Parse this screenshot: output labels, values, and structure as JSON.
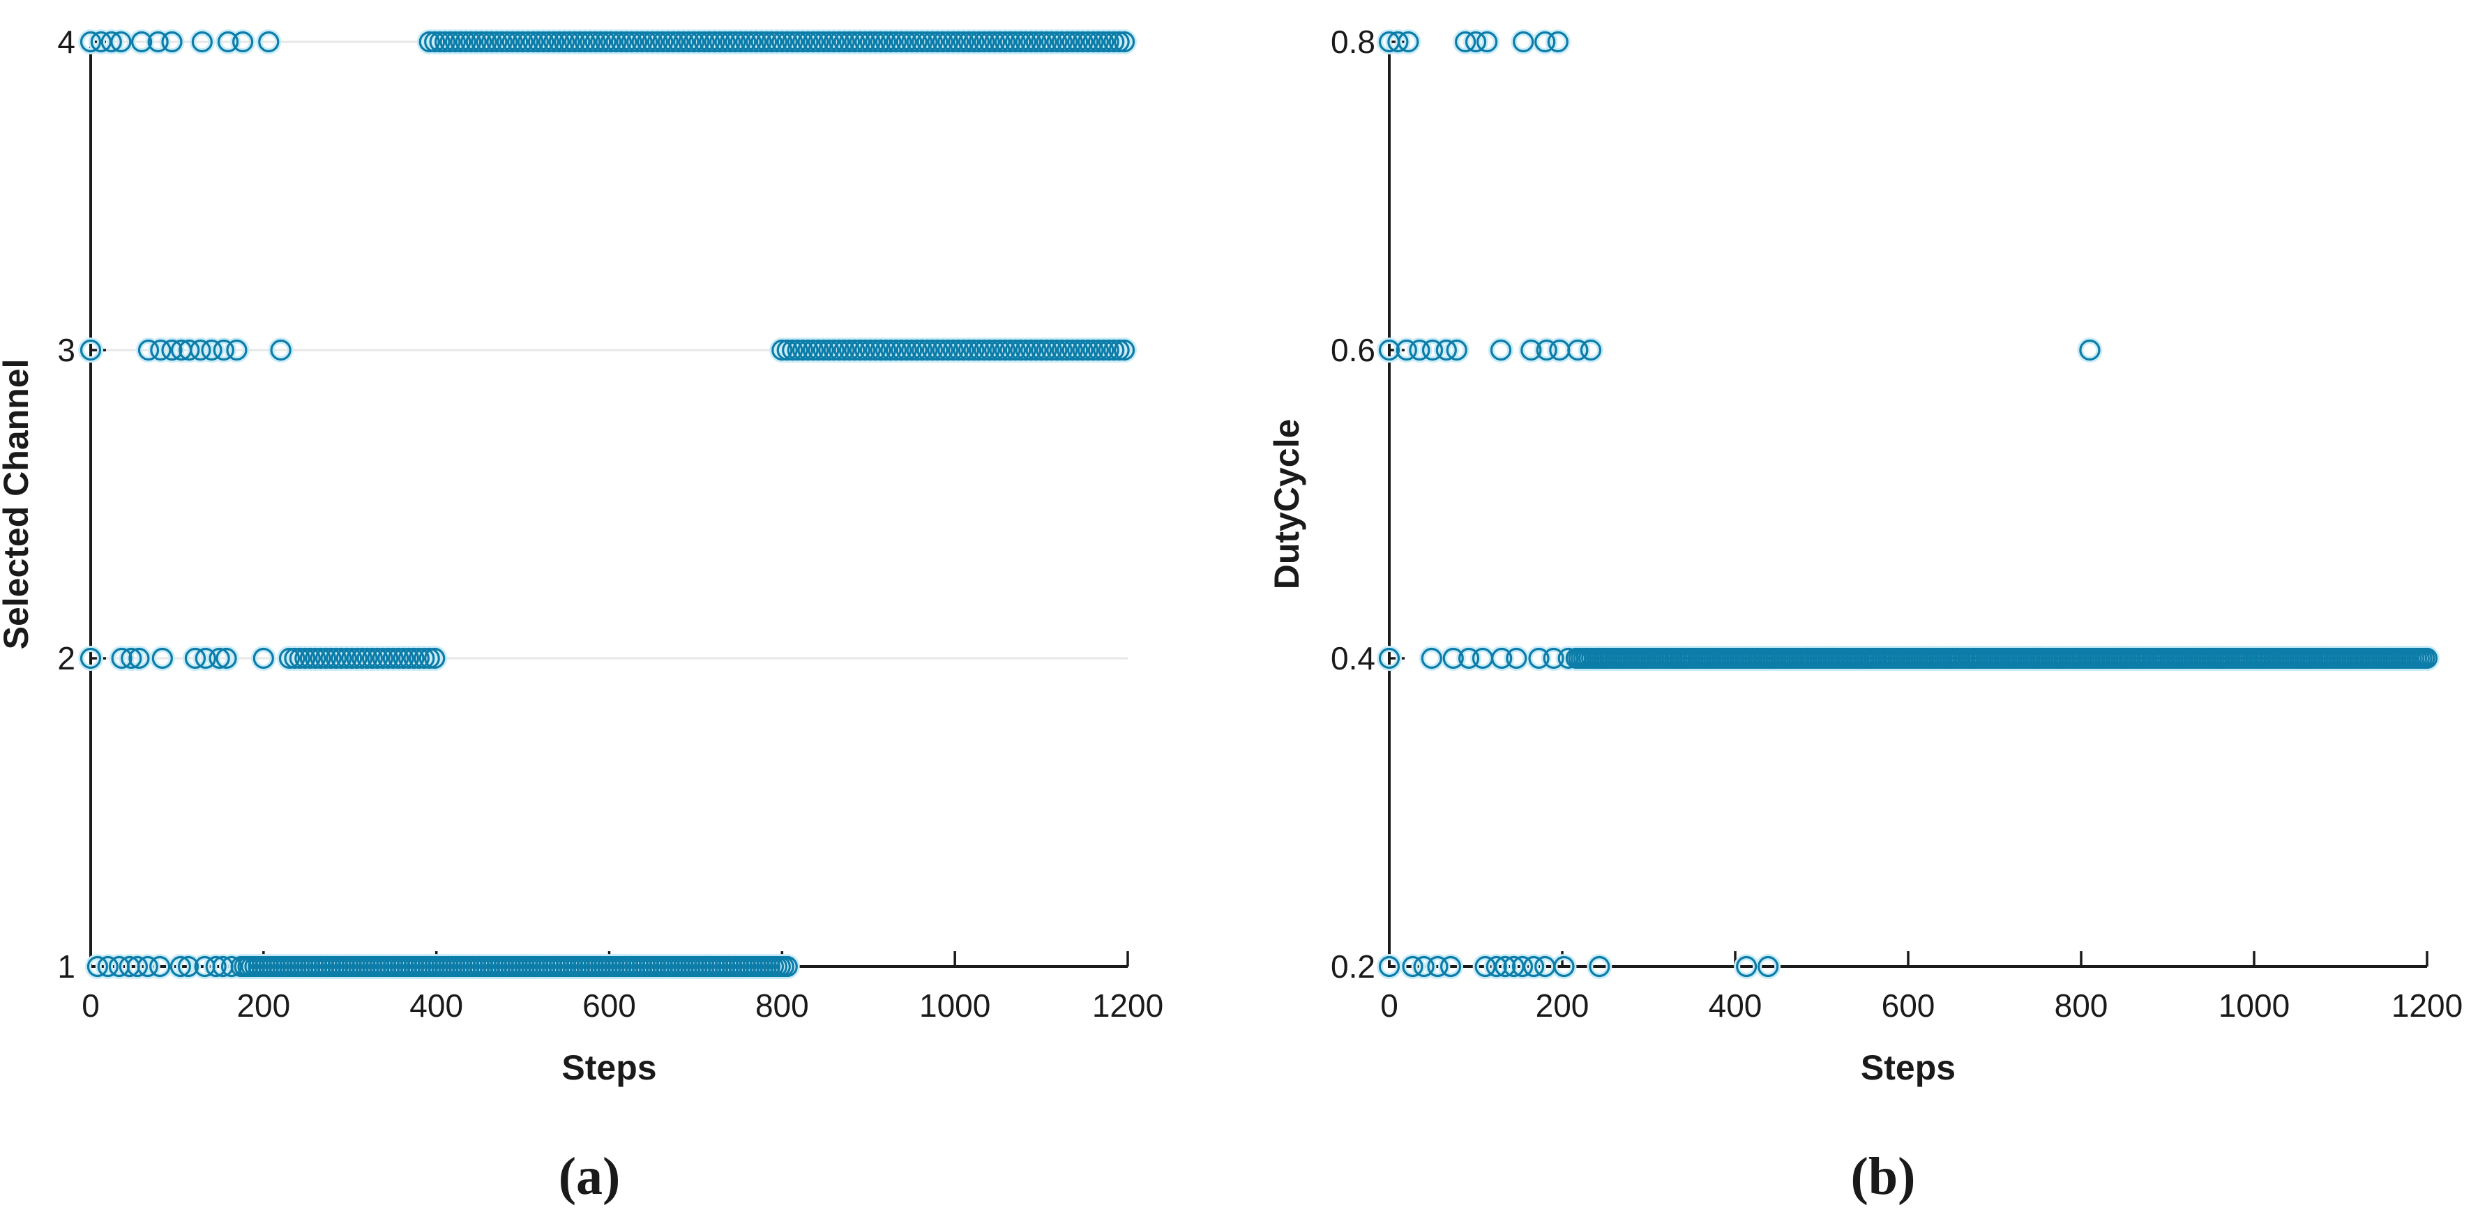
{
  "figure": {
    "background": "#ffffff",
    "axis_color": "#1a1a1a",
    "grid_color": "#e7e7e7",
    "marker_stroke": "#0c7ca8",
    "marker_halo": "#c9ecf8",
    "caption_a": "(a)",
    "caption_b": "(b)"
  },
  "chart_data": [
    {
      "type": "scatter",
      "caption": "(a)",
      "xlabel": "Steps",
      "ylabel": "Selected Channel",
      "xlim": [
        0,
        1200
      ],
      "ylim": [
        1,
        4
      ],
      "xticks": [
        0,
        200,
        400,
        600,
        800,
        1000,
        1200
      ],
      "yticks": [
        1,
        2,
        3,
        4
      ],
      "grid_y": [
        2,
        3,
        4
      ],
      "legend": null,
      "marker": "open-circle",
      "rows": [
        {
          "y": 4,
          "scatter": [
            0,
            12,
            24,
            35,
            59,
            78,
            94,
            129,
            159,
            176,
            206
          ],
          "dense": [
            [
              392,
              1200,
              6
            ]
          ]
        },
        {
          "y": 3,
          "scatter": [
            0,
            67,
            81,
            94,
            105,
            114,
            127,
            140,
            154,
            169,
            220
          ],
          "dense": [
            [
              800,
              1200,
              6
            ]
          ]
        },
        {
          "y": 2,
          "scatter": [
            0,
            36,
            47,
            56,
            83,
            121,
            133,
            149,
            157,
            200
          ],
          "dense": [
            [
              230,
              398,
              6
            ]
          ]
        },
        {
          "y": 1,
          "scatter": [
            8,
            20,
            33,
            45,
            54,
            66,
            80,
            104,
            113,
            132,
            145,
            153,
            163
          ],
          "dense": [
            [
              174,
              806,
              4
            ]
          ]
        }
      ]
    },
    {
      "type": "scatter",
      "caption": "(b)",
      "xlabel": "Steps",
      "ylabel": "DutyCycle",
      "xlim": [
        0,
        1200
      ],
      "ylim": [
        0.2,
        0.8
      ],
      "xticks": [
        0,
        200,
        400,
        600,
        800,
        1000,
        1200
      ],
      "yticks": [
        0.2,
        0.4,
        0.6,
        0.8
      ],
      "grid_y": [],
      "legend": null,
      "marker": "open-circle",
      "rows": [
        {
          "y": 0.8,
          "scatter": [
            0,
            10,
            22,
            88,
            100,
            113,
            155,
            180,
            195
          ],
          "dense": []
        },
        {
          "y": 0.6,
          "scatter": [
            0,
            20,
            35,
            50,
            66,
            78,
            129,
            164,
            182,
            197,
            218,
            233,
            810
          ],
          "dense": []
        },
        {
          "y": 0.4,
          "scatter": [
            0,
            49,
            74,
            92,
            108,
            130,
            147,
            173,
            190,
            207
          ],
          "dense": [
            [
              216,
              1200,
              3
            ]
          ]
        },
        {
          "y": 0.2,
          "scatter": [
            0,
            27,
            40,
            56,
            71,
            111,
            124,
            134,
            144,
            154,
            167,
            180,
            202,
            243,
            413,
            438
          ],
          "dense": []
        }
      ]
    }
  ]
}
